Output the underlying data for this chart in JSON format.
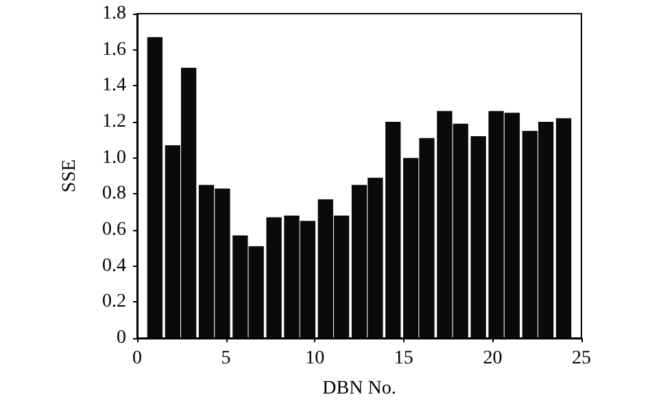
{
  "chart_data": {
    "type": "bar",
    "xlabel": "DBN No.",
    "ylabel": "SSE",
    "x": [
      1.0,
      2.0,
      2.9,
      3.9,
      4.8,
      5.8,
      6.7,
      7.7,
      8.7,
      9.6,
      10.6,
      11.5,
      12.5,
      13.4,
      14.4,
      15.4,
      16.3,
      17.3,
      18.2,
      19.2,
      20.2,
      21.1,
      22.1,
      23.0,
      24.0
    ],
    "values": [
      1.67,
      1.07,
      1.5,
      0.85,
      0.83,
      0.57,
      0.51,
      0.67,
      0.68,
      0.65,
      0.77,
      0.68,
      0.85,
      0.89,
      1.2,
      1.0,
      1.11,
      1.26,
      1.19,
      1.12,
      1.26,
      1.25,
      1.15,
      1.2,
      1.22
    ],
    "color": "#0a0a0a",
    "xlim": [
      0,
      25
    ],
    "xticks": [
      0,
      5,
      10,
      15,
      20,
      25
    ],
    "ylim": [
      0,
      1.8
    ],
    "yticks": [
      0,
      0.2,
      0.4,
      0.6,
      0.8,
      {
        "value": 1,
        "label": "1.0"
      },
      1.2,
      1.4,
      1.6,
      1.8
    ]
  }
}
